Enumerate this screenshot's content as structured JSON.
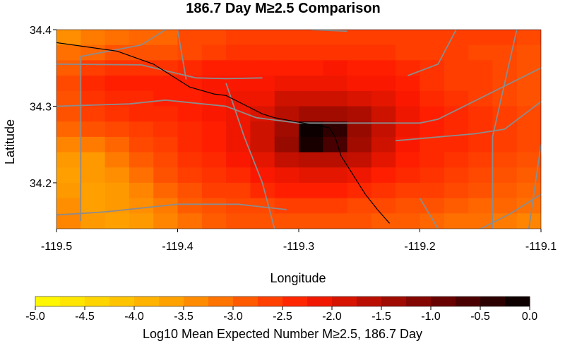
{
  "chart_data": {
    "type": "heatmap",
    "title": "186.7 Day M≥2.5 Comparison",
    "xlabel": "Longitude",
    "ylabel": "Latitude",
    "xlim": [
      -119.5,
      -119.1
    ],
    "ylim": [
      34.14,
      34.4
    ],
    "x_ticks": [
      -119.5,
      -119.4,
      -119.3,
      -119.2,
      -119.1
    ],
    "x_tick_labels": [
      "-119.5",
      "-119.4",
      "-119.3",
      "-119.2",
      "-119.1"
    ],
    "y_ticks": [
      34.2,
      34.3,
      34.4
    ],
    "y_tick_labels": [
      "34.2",
      "34.3",
      "34.4"
    ],
    "grid": false,
    "cell_size_deg": 0.02,
    "grid_origin": {
      "lon": -119.5,
      "lat": 34.4
    },
    "values": [
      [
        -3.4,
        -3.2,
        -3.1,
        -3.0,
        -3.0,
        -2.7,
        -2.7,
        -2.6,
        -2.6,
        -2.6,
        -2.6,
        -2.6,
        -2.6,
        -2.6,
        -2.6,
        -2.6,
        -2.6,
        -2.6,
        -2.6,
        -2.7
      ],
      [
        -3.1,
        -3.0,
        -2.8,
        -2.8,
        -2.8,
        -2.7,
        -2.6,
        -2.5,
        -2.5,
        -2.5,
        -2.5,
        -2.5,
        -2.5,
        -2.5,
        -2.6,
        -2.6,
        -2.6,
        -2.7,
        -2.7,
        -2.8
      ],
      [
        -2.9,
        -2.6,
        -2.5,
        -2.5,
        -2.5,
        -2.4,
        -2.3,
        -2.3,
        -2.3,
        -2.3,
        -2.3,
        -2.2,
        -2.3,
        -2.3,
        -2.4,
        -2.5,
        -2.6,
        -2.6,
        -2.7,
        -2.8
      ],
      [
        -2.7,
        -2.4,
        -2.3,
        -2.3,
        -2.3,
        -2.3,
        -2.2,
        -2.2,
        -2.2,
        -2.1,
        -2.1,
        -2.1,
        -2.2,
        -2.2,
        -2.3,
        -2.5,
        -2.6,
        -2.6,
        -2.7,
        -2.8
      ],
      [
        -2.8,
        -2.5,
        -2.4,
        -2.4,
        -2.3,
        -2.3,
        -2.2,
        -2.1,
        -2.1,
        -1.8,
        -1.8,
        -1.8,
        -1.9,
        -2.0,
        -2.2,
        -2.4,
        -2.5,
        -2.6,
        -2.7,
        -2.8
      ],
      [
        -2.8,
        -2.6,
        -2.5,
        -2.4,
        -2.4,
        -2.3,
        -2.2,
        -2.1,
        -1.9,
        -1.6,
        -1.4,
        -1.4,
        -1.5,
        -1.8,
        -2.1,
        -2.3,
        -2.4,
        -2.5,
        -2.6,
        -2.7
      ],
      [
        -3.0,
        -2.8,
        -2.7,
        -2.6,
        -2.5,
        -2.4,
        -2.3,
        -2.1,
        -1.8,
        -1.4,
        -0.1,
        -0.4,
        -1.3,
        -1.7,
        -2.1,
        -2.3,
        -2.4,
        -2.5,
        -2.6,
        -2.7
      ],
      [
        -3.3,
        -3.2,
        -3.0,
        -2.7,
        -2.6,
        -2.4,
        -2.3,
        -2.1,
        -1.8,
        -1.3,
        -0.2,
        -0.6,
        -1.4,
        -1.8,
        -2.2,
        -2.4,
        -2.4,
        -2.5,
        -2.6,
        -2.7
      ],
      [
        -3.5,
        -3.5,
        -3.2,
        -2.9,
        -2.7,
        -2.5,
        -2.4,
        -2.2,
        -2.0,
        -1.7,
        -1.6,
        -1.6,
        -1.7,
        -2.0,
        -2.3,
        -2.4,
        -2.5,
        -2.6,
        -2.7,
        -2.8
      ],
      [
        -3.6,
        -3.5,
        -3.4,
        -3.1,
        -2.8,
        -2.6,
        -2.5,
        -2.4,
        -2.2,
        -2.1,
        -2.0,
        -2.0,
        -2.1,
        -2.3,
        -2.4,
        -2.5,
        -2.6,
        -2.7,
        -2.8,
        -2.9
      ],
      [
        -3.5,
        -3.6,
        -3.5,
        -3.3,
        -3.0,
        -2.8,
        -2.6,
        -2.6,
        -2.4,
        -2.3,
        -2.3,
        -2.3,
        -2.4,
        -2.5,
        -2.6,
        -2.6,
        -2.7,
        -2.8,
        -2.9,
        -3.0
      ],
      [
        -3.4,
        -3.6,
        -3.5,
        -3.4,
        -3.2,
        -2.9,
        -2.8,
        -2.7,
        -2.7,
        -2.6,
        -2.6,
        -2.6,
        -2.7,
        -2.7,
        -2.8,
        -2.8,
        -2.9,
        -3.0,
        -3.0,
        -3.1
      ],
      [
        -3.3,
        -3.5,
        -3.6,
        -3.5,
        -3.3,
        -3.1,
        -2.9,
        -2.8,
        -2.8,
        -2.8,
        -2.8,
        -2.8,
        -2.8,
        -2.9,
        -2.9,
        -3.0,
        -3.1,
        -3.1,
        -3.2,
        -3.3
      ],
      [
        -3.2,
        -3.4,
        -3.6,
        -3.6,
        -3.4,
        -3.2,
        -3.0,
        -2.9,
        -2.9,
        -2.9,
        -2.9,
        -2.9,
        -3.0,
        -3.0,
        -3.0,
        -3.1,
        -3.2,
        -3.3,
        -3.4,
        -3.4
      ]
    ],
    "colorbar": {
      "label": "Log10 Mean Expected Number M≥2.5, 186.7 Day",
      "range": [
        -5.0,
        0.0
      ],
      "steps": 20,
      "ticks": [
        -5.0,
        -4.5,
        -4.0,
        -3.5,
        -3.0,
        -2.5,
        -2.0,
        -1.5,
        -1.0,
        -0.5,
        0.0
      ],
      "tick_labels": [
        "-5.0",
        "-4.5",
        "-4.0",
        "-3.5",
        "-3.0",
        "-2.5",
        "-2.0",
        "-1.5",
        "-1.0",
        "-0.5",
        "0.0"
      ]
    },
    "colors": {
      "yellow": "#ffff00",
      "orange": "#ff9900",
      "red": "#ff1a00",
      "dark_red": "#5a0000",
      "black": "#000000",
      "fault_lines": "#8c8c8c",
      "coastline": "#000000"
    },
    "overlays": {
      "coastline": [
        [
          -119.5,
          34.383
        ],
        [
          -119.45,
          34.372
        ],
        [
          -119.42,
          34.355
        ],
        [
          -119.39,
          34.325
        ],
        [
          -119.37,
          34.316
        ],
        [
          -119.36,
          34.314
        ],
        [
          -119.33,
          34.29
        ],
        [
          -119.32,
          34.285
        ],
        [
          -119.3,
          34.279
        ],
        [
          -119.275,
          34.272
        ],
        [
          -119.27,
          34.26
        ],
        [
          -119.265,
          34.235
        ],
        [
          -119.255,
          34.21
        ],
        [
          -119.245,
          34.185
        ],
        [
          -119.235,
          34.165
        ],
        [
          -119.225,
          34.147
        ]
      ],
      "fault_lines": [
        [
          [
            -119.5,
            34.355
          ],
          [
            -119.43,
            34.354
          ],
          [
            -119.385,
            34.337
          ],
          [
            -119.36,
            34.336
          ],
          [
            -119.33,
            34.337
          ]
        ],
        [
          [
            -119.5,
            34.3
          ],
          [
            -119.44,
            34.303
          ],
          [
            -119.41,
            34.308
          ],
          [
            -119.36,
            34.3
          ],
          [
            -119.335,
            34.285
          ],
          [
            -119.3,
            34.278
          ],
          [
            -119.2,
            34.278
          ],
          [
            -119.185,
            34.283
          ],
          [
            -119.1,
            34.35
          ]
        ],
        [
          [
            -119.22,
            34.255
          ],
          [
            -119.155,
            34.264
          ],
          [
            -119.13,
            34.27
          ],
          [
            -119.1,
            34.306
          ]
        ],
        [
          [
            -119.4,
            34.4
          ],
          [
            -119.393,
            34.335
          ]
        ],
        [
          [
            -119.48,
            34.15
          ],
          [
            -119.48,
            34.365
          ],
          [
            -119.43,
            34.38
          ],
          [
            -119.41,
            34.4
          ]
        ],
        [
          [
            -119.21,
            34.34
          ],
          [
            -119.185,
            34.355
          ],
          [
            -119.17,
            34.4
          ]
        ],
        [
          [
            -119.5,
            34.158
          ],
          [
            -119.46,
            34.162
          ],
          [
            -119.4,
            34.172
          ],
          [
            -119.35,
            34.172
          ],
          [
            -119.31,
            34.165
          ]
        ],
        [
          [
            -119.14,
            34.14
          ],
          [
            -119.14,
            34.26
          ],
          [
            -119.12,
            34.4
          ]
        ],
        [
          [
            -119.2,
            34.18
          ],
          [
            -119.185,
            34.14
          ]
        ],
        [
          [
            -119.15,
            34.14
          ],
          [
            -119.125,
            34.16
          ],
          [
            -119.1,
            34.185
          ]
        ],
        [
          [
            -119.36,
            34.33
          ],
          [
            -119.345,
            34.26
          ],
          [
            -119.33,
            34.2
          ],
          [
            -119.32,
            34.14
          ]
        ],
        [
          [
            -119.29,
            34.4
          ],
          [
            -119.26,
            34.398
          ]
        ],
        [
          [
            -119.1,
            34.25
          ],
          [
            -119.11,
            34.14
          ]
        ]
      ]
    }
  }
}
